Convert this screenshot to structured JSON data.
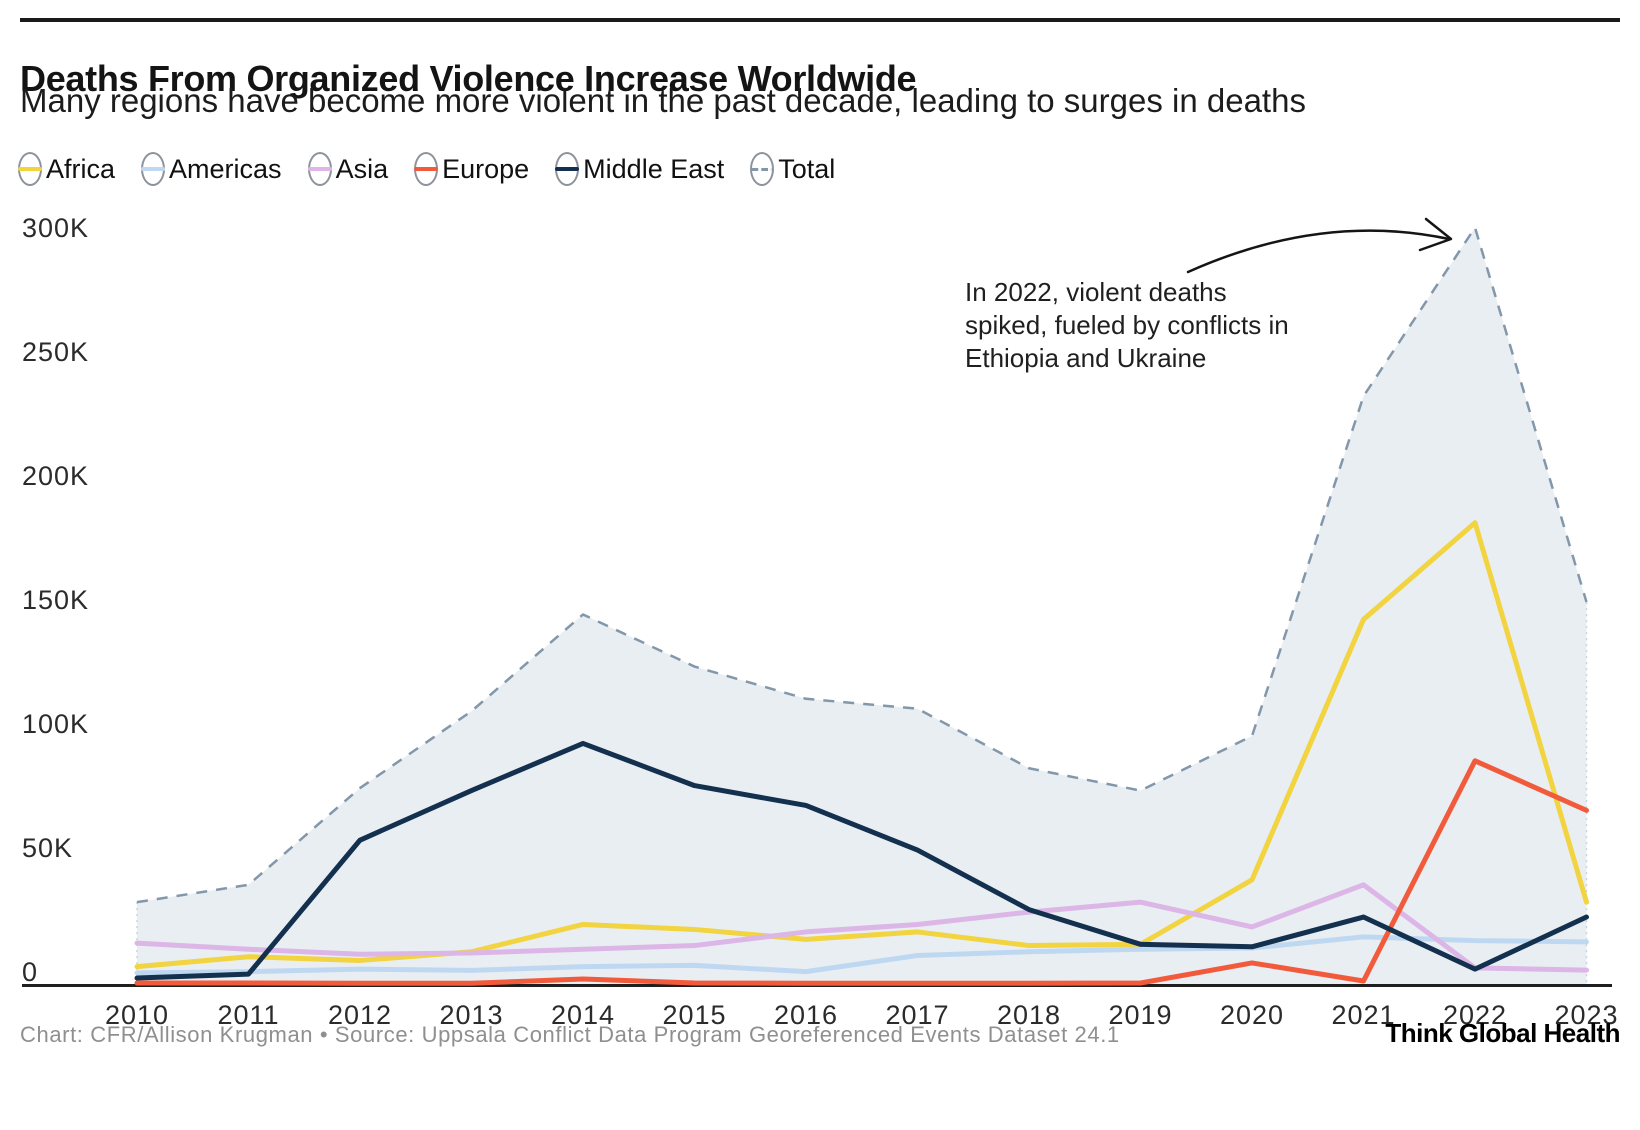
{
  "header": {
    "title": "Deaths From Organized Violence Increase Worldwide",
    "subtitle": "Many regions have become more violent in the past decade, leading to surges in deaths"
  },
  "legend": {
    "items": [
      {
        "label": "Africa",
        "color": "#F2D340",
        "dashed": false
      },
      {
        "label": "Americas",
        "color": "#BFD8F2",
        "dashed": false
      },
      {
        "label": "Asia",
        "color": "#DCB6E6",
        "dashed": false
      },
      {
        "label": "Europe",
        "color": "#F15B3B",
        "dashed": false
      },
      {
        "label": "Middle East",
        "color": "#14304F",
        "dashed": false
      },
      {
        "label": "Total",
        "color": "#8397AB",
        "dashed": true
      }
    ]
  },
  "annotation": {
    "line1": "In 2022, violent deaths",
    "line2": "spiked, fueled by conflicts in",
    "line3": "Ethiopia and Ukraine"
  },
  "axis": {
    "y_ticks": [
      {
        "label": "300K",
        "value": 300000
      },
      {
        "label": "250K",
        "value": 250000
      },
      {
        "label": "200K",
        "value": 200000
      },
      {
        "label": "150K",
        "value": 150000
      },
      {
        "label": "100K",
        "value": 100000
      },
      {
        "label": "50K",
        "value": 50000
      },
      {
        "label": "0",
        "value": 0
      }
    ],
    "x_ticks": [
      "2010",
      "2011",
      "2012",
      "2013",
      "2014",
      "2015",
      "2016",
      "2017",
      "2018",
      "2019",
      "2020",
      "2021",
      "2022",
      "2023"
    ]
  },
  "chart_data": {
    "type": "line",
    "title": "Deaths From Organized Violence Increase Worldwide",
    "subtitle": "Many regions have become more violent in the past decade, leading to surges in deaths",
    "x": [
      2010,
      2011,
      2012,
      2013,
      2014,
      2015,
      2016,
      2017,
      2018,
      2019,
      2020,
      2021,
      2022,
      2023
    ],
    "ylim": [
      0,
      300000
    ],
    "y_tick_step": 50000,
    "grid": false,
    "legend_position": "top-left",
    "area_fill": "#E9EEF2",
    "annotation_text": "In 2022, violent deaths spiked, fueled by conflicts in Ethiopia and Ukraine",
    "series": [
      {
        "name": "Africa",
        "color": "#F2D340",
        "values": [
          7000,
          11000,
          9500,
          13000,
          24000,
          22000,
          18000,
          21000,
          15500,
          16000,
          42000,
          147000,
          186000,
          33000
        ]
      },
      {
        "name": "Americas",
        "color": "#BFD8F2",
        "values": [
          4500,
          5000,
          6000,
          5500,
          7000,
          7500,
          5000,
          11500,
          13000,
          14000,
          14500,
          19000,
          17500,
          17000
        ]
      },
      {
        "name": "Asia",
        "color": "#DCB6E6",
        "values": [
          16500,
          14000,
          12000,
          12500,
          14000,
          15500,
          21000,
          24000,
          29000,
          33000,
          23000,
          40000,
          6500,
          5600
        ]
      },
      {
        "name": "Europe",
        "color": "#F15B3B",
        "values": [
          400,
          400,
          300,
          300,
          2000,
          400,
          300,
          300,
          300,
          400,
          8500,
          1200,
          90000,
          70000
        ]
      },
      {
        "name": "Middle East",
        "color": "#14304F",
        "values": [
          2400,
          4000,
          58000,
          78000,
          97000,
          80000,
          72000,
          54000,
          30000,
          16000,
          15000,
          27000,
          6000,
          27000
        ]
      },
      {
        "name": "Total",
        "color": "#8397AB",
        "dashed": true,
        "total": true,
        "values": [
          33000,
          40000,
          79000,
          110000,
          149000,
          128000,
          115000,
          111000,
          87000,
          78000,
          100000,
          237000,
          305000,
          154000
        ]
      }
    ]
  },
  "footer": {
    "credit": "Chart: CFR/Allison Krugman • Source: Uppsala Conflict Data Program Georeferenced Events Dataset 24.1",
    "brand": "Think Global Health"
  }
}
